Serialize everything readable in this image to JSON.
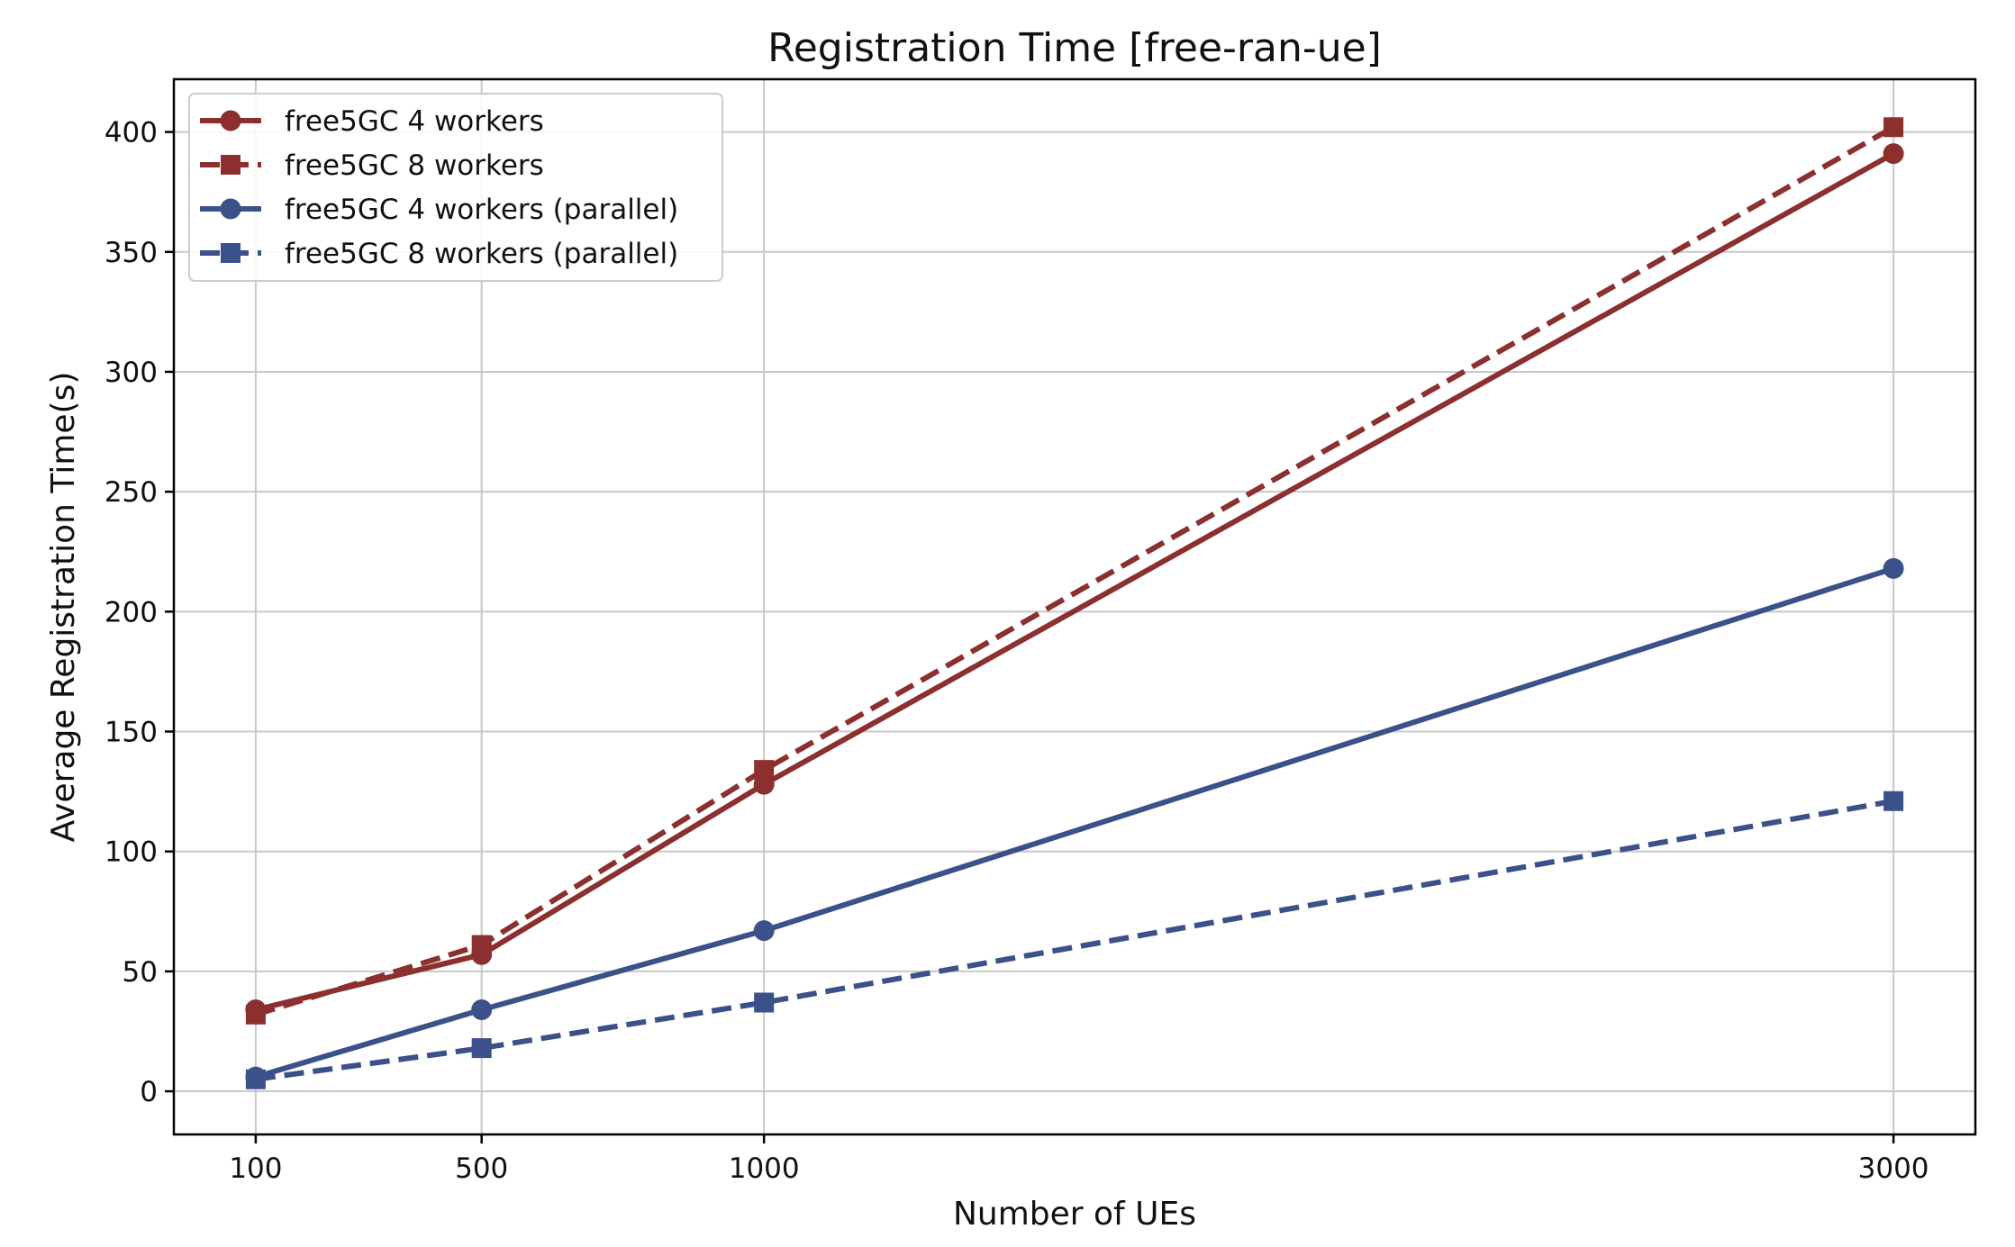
{
  "chart_data": {
    "type": "line",
    "title": "Registration Time [free-ran-ue]",
    "xlabel": "Number of UEs",
    "ylabel": "Average Registration Time(s)",
    "x": [
      100,
      500,
      1000,
      3000
    ],
    "x_tick_labels": [
      "100",
      "500",
      "1000",
      "3000"
    ],
    "y_ticks": [
      0,
      50,
      100,
      150,
      200,
      250,
      300,
      350,
      400
    ],
    "y_tick_labels": [
      "0",
      "50",
      "100",
      "150",
      "200",
      "250",
      "300",
      "350",
      "400"
    ],
    "xlim": [
      -45,
      3145
    ],
    "ylim": [
      -18,
      422
    ],
    "grid": true,
    "legend_position": "top-left",
    "series": [
      {
        "name": "free5GC 4 workers",
        "values": [
          34,
          57,
          128,
          391
        ],
        "color": "#8b2f2f",
        "line_style": "solid",
        "marker": "circle"
      },
      {
        "name": "free5GC 8 workers",
        "values": [
          32,
          61,
          134,
          402
        ],
        "color": "#8b2f2f",
        "line_style": "dashed",
        "marker": "square"
      },
      {
        "name": "free5GC 4 workers (parallel)",
        "values": [
          6,
          34,
          67,
          218
        ],
        "color": "#3a5189",
        "line_style": "solid",
        "marker": "circle"
      },
      {
        "name": "free5GC 8 workers (parallel)",
        "values": [
          5,
          18,
          37,
          121
        ],
        "color": "#3a5189",
        "line_style": "dashed",
        "marker": "square"
      }
    ]
  }
}
